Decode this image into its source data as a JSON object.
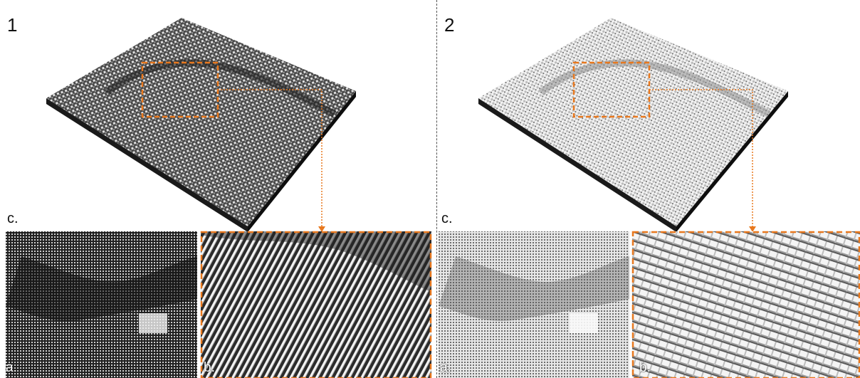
{
  "panels": [
    {
      "number": "1",
      "c_label": "c.",
      "a_label": "a.",
      "b_label": "b."
    },
    {
      "number": "2",
      "c_label": "c.",
      "a_label": "a.",
      "b_label": "b."
    }
  ],
  "colors": {
    "highlight": "#e8781e",
    "dark_base": "#1a1a1a",
    "light_surface": "#e9e9e9",
    "dark_surface": "#2a2a2a"
  }
}
